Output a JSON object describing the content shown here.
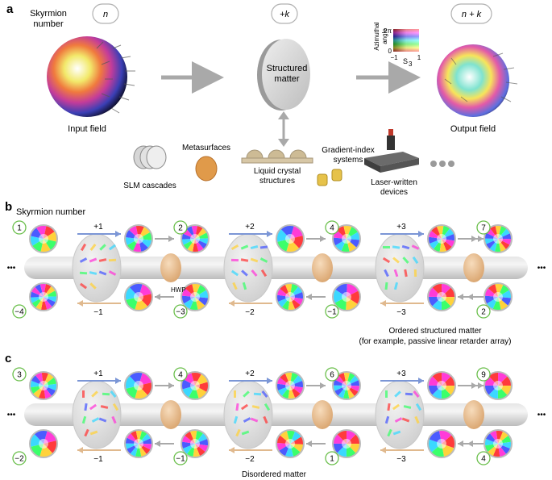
{
  "panel_a": {
    "letter": "a",
    "skyrmion_label_line1": "Skyrmion",
    "skyrmion_label_line2": "number",
    "badge_in": "n",
    "badge_mid": "+k",
    "badge_out": "n + k",
    "structured_matter_line1": "Structured",
    "structured_matter_line2": "matter",
    "input_field": "Input field",
    "output_field": "Output field",
    "colorbar": {
      "title_line1": "Azimuthal",
      "title_line2": "angle",
      "top_tick": "2π",
      "bottom_tick": "0",
      "x_min": "−1",
      "x_max": "1",
      "x_label": "S",
      "x_label_sub": "3"
    },
    "platforms": {
      "slm": "SLM cascades",
      "meta": "Metasurfaces",
      "lc_line1": "Liquid crystal",
      "lc_line2": "structures",
      "grin_line1": "Gradient-index",
      "grin_line2": "systems",
      "laser_line1": "Laser-written",
      "laser_line2": "devices"
    }
  },
  "panel_b": {
    "letter": "b",
    "title": "Skyrmion number",
    "top_numbers": [
      "1",
      "2",
      "4",
      "7"
    ],
    "bottom_numbers": [
      "−4",
      "−3",
      "−1",
      "2"
    ],
    "forward_steps": [
      "+1",
      "+2",
      "+3"
    ],
    "backward_steps": [
      "−1",
      "−2",
      "−3"
    ],
    "hwp": "HWP",
    "caption_line1": "Ordered structured matter",
    "caption_line2": "(for example, passive linear retarder array)",
    "ellipsis": "•••"
  },
  "panel_c": {
    "letter": "c",
    "top_numbers": [
      "3",
      "4",
      "6",
      "9"
    ],
    "bottom_numbers": [
      "−2",
      "−1",
      "1",
      "4"
    ],
    "forward_steps": [
      "+1",
      "+2",
      "+3"
    ],
    "backward_steps": [
      "−1",
      "−2",
      "−3"
    ],
    "caption": "Disordered matter",
    "ellipsis": "•••"
  },
  "colors": {
    "forward_arrow": "#7b96d6",
    "backward_arrow": "#e0b98e",
    "badge_border": "#6abf4b",
    "tube": "#d0d0d0",
    "hwp": "#e9c39a",
    "gray_arrow": "#a9a9a9"
  }
}
